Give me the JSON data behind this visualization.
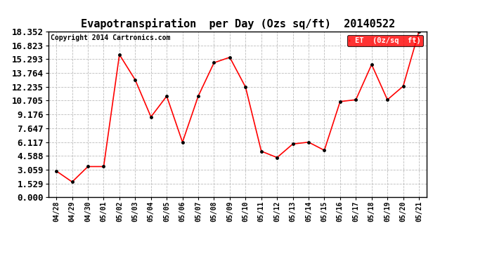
{
  "title": "Evapotranspiration  per Day (Ozs sq/ft)  20140522",
  "copyright": "Copyright 2014 Cartronics.com",
  "legend_label": "ET  (0z/sq  ft)",
  "x_labels": [
    "04/28",
    "04/29",
    "04/30",
    "05/01",
    "05/02",
    "05/03",
    "05/04",
    "05/05",
    "05/06",
    "05/07",
    "05/08",
    "05/09",
    "05/10",
    "05/11",
    "05/12",
    "05/13",
    "05/14",
    "05/15",
    "05/16",
    "05/17",
    "05/18",
    "05/19",
    "05/20",
    "05/21"
  ],
  "y_values": [
    2.9,
    1.7,
    3.4,
    3.4,
    15.8,
    13.0,
    8.9,
    11.2,
    6.1,
    11.2,
    14.9,
    15.5,
    12.2,
    5.1,
    4.4,
    5.9,
    6.1,
    5.2,
    10.6,
    10.8,
    14.7,
    10.8,
    12.3,
    18.35
  ],
  "y_ticks": [
    0.0,
    1.529,
    3.059,
    4.588,
    6.117,
    7.647,
    9.176,
    10.705,
    12.235,
    13.764,
    15.293,
    16.823,
    18.352
  ],
  "y_min": 0.0,
  "y_max": 18.352,
  "line_color": "red",
  "marker_color": "black",
  "background_color": "white",
  "grid_color": "#bbbbbb",
  "title_fontsize": 11,
  "copyright_fontsize": 7,
  "ytick_fontsize": 9,
  "xtick_fontsize": 7,
  "legend_bg_color": "red",
  "legend_text_color": "white"
}
